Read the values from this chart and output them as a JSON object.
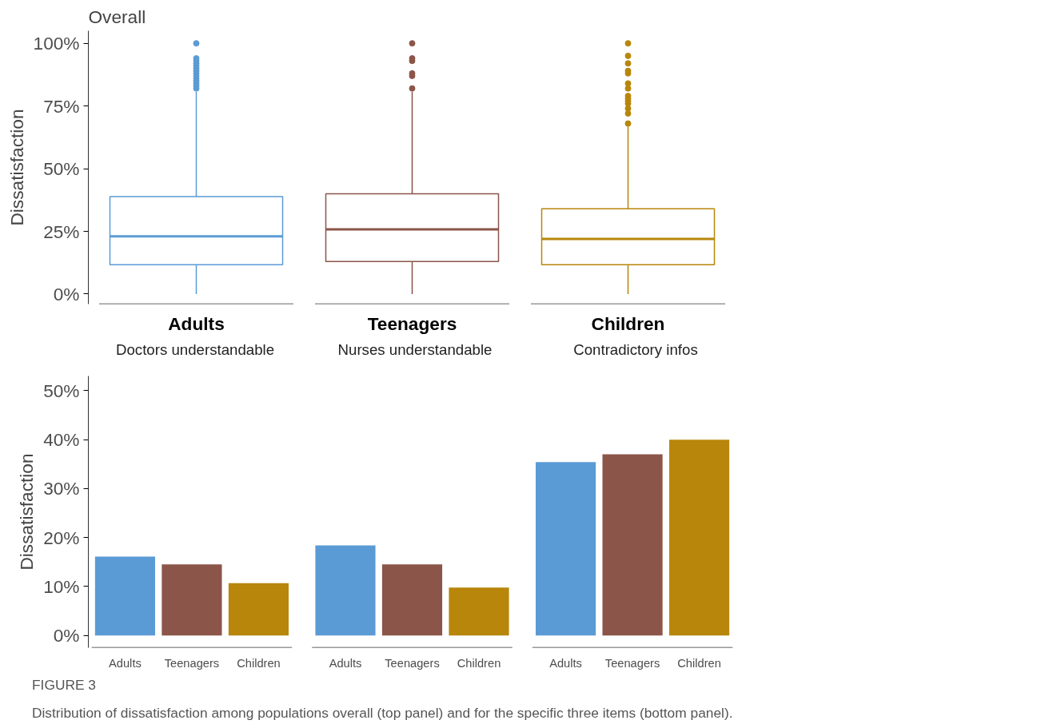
{
  "chart_data": [
    {
      "type": "box",
      "title": "Overall",
      "ylabel": "Dissatisfaction",
      "categories": [
        "Adults",
        "Teenagers",
        "Children"
      ],
      "colors": [
        "#5b9bd5",
        "#8b5549",
        "#b8860b"
      ],
      "boxes": [
        {
          "low": 0,
          "q1": 11.7,
          "median": 23,
          "q3": 38.9,
          "high": 80.6,
          "outliers": [
            82,
            83,
            84,
            85,
            86,
            87,
            88,
            89,
            90,
            91,
            92,
            93,
            94,
            100
          ]
        },
        {
          "low": 0,
          "q1": 13,
          "median": 25.8,
          "q3": 40,
          "high": 80.6,
          "outliers": [
            82,
            87,
            88,
            93,
            94,
            100
          ]
        },
        {
          "low": 0,
          "q1": 11.7,
          "median": 22,
          "q3": 34,
          "high": 67,
          "outliers": [
            68,
            72,
            74,
            76,
            77,
            78,
            79,
            82,
            84,
            88,
            89,
            92,
            95,
            100
          ]
        }
      ],
      "ylim": [
        -4,
        105
      ],
      "yticks": [
        {
          "value": 0,
          "label": "0%"
        },
        {
          "value": 25,
          "label": "25%"
        },
        {
          "value": 50,
          "label": "50%"
        },
        {
          "value": 75,
          "label": "75%"
        },
        {
          "value": 100,
          "label": "100%"
        }
      ],
      "annotations": [
        "FIGURE 3",
        "Distribution of dissatisfaction among populations overall (top panel) and for the specific three items (bottom panel)."
      ]
    },
    {
      "type": "bar",
      "ylabel": "Dissatisfaction",
      "annotations": [
        "Doctors understandable",
        "Nurses understandable",
        "Contradictory infos"
      ],
      "categories": [
        "Adults",
        "Teenagers",
        "Children",
        "Adults",
        "Teenagers",
        "Children",
        "Adults",
        "Teenagers",
        "Children"
      ],
      "colors": [
        "#5b9bd5",
        "#8b5549",
        "#b8860b",
        "#5b9bd5",
        "#8b5549",
        "#b8860b",
        "#5b9bd5",
        "#8b5549",
        "#b8860b"
      ],
      "values": [
        16.1,
        14.5,
        10.7,
        18.4,
        14.5,
        9.8,
        35.4,
        37.0,
        40.0
      ],
      "ylim": [
        -2.5,
        53
      ],
      "yticks": [
        {
          "value": 0,
          "label": "0%"
        },
        {
          "value": 10,
          "label": "10%"
        },
        {
          "value": 20,
          "label": "20%"
        },
        {
          "value": 30,
          "label": "30%"
        },
        {
          "value": 40,
          "label": "40%"
        },
        {
          "value": 50,
          "label": "50%"
        }
      ]
    }
  ]
}
